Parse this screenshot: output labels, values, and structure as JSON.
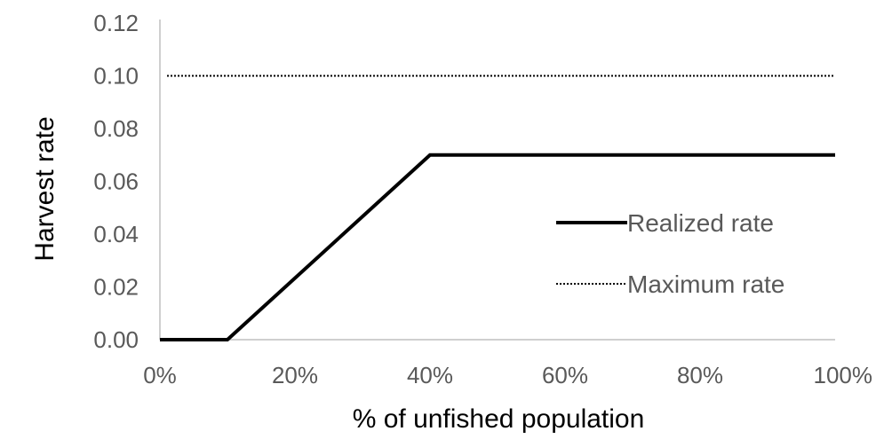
{
  "chart_data": {
    "type": "line",
    "title": "",
    "xlabel": "% of unfished population",
    "ylabel": "Harvest rate",
    "xlim": [
      0,
      100
    ],
    "ylim": [
      0,
      0.12
    ],
    "x_ticks": [
      "0%",
      "20%",
      "40%",
      "60%",
      "80%",
      "100%"
    ],
    "y_ticks": [
      "0.00",
      "0.02",
      "0.04",
      "0.06",
      "0.08",
      "0.10",
      "0.12"
    ],
    "grid": false,
    "legend_position": "center-right",
    "series": [
      {
        "name": "Realized rate",
        "style": "solid",
        "color": "#000000",
        "x": [
          0,
          10,
          40,
          100
        ],
        "y": [
          0,
          0,
          0.07,
          0.07
        ]
      },
      {
        "name": "Maximum rate",
        "style": "dotted",
        "color": "#000000",
        "x": [
          0,
          100
        ],
        "y": [
          0.1,
          0.1
        ]
      }
    ],
    "axis_color": "#bfbfbf",
    "tick_label_color": "#595959"
  }
}
